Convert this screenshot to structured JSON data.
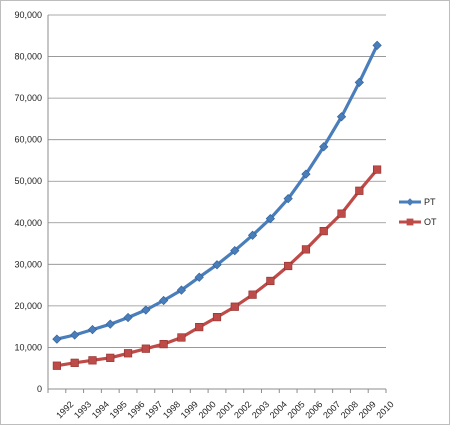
{
  "chart_data": {
    "type": "line",
    "title": "",
    "xlabel": "",
    "ylabel": "",
    "categories": [
      "1992",
      "1993",
      "1994",
      "1995",
      "1996",
      "1997",
      "1998",
      "1999",
      "2000",
      "2001",
      "2002",
      "2003",
      "2004",
      "2005",
      "2006",
      "2007",
      "2008",
      "2009",
      "2010"
    ],
    "ylim": [
      0,
      90000
    ],
    "yticks": [
      0,
      10000,
      20000,
      30000,
      40000,
      50000,
      60000,
      70000,
      80000,
      90000
    ],
    "ytick_labels": [
      "0",
      "10,000",
      "20,000",
      "30,000",
      "40,000",
      "50,000",
      "60,000",
      "70,000",
      "80,000",
      "90,000"
    ],
    "grid": true,
    "legend_position": "right",
    "series": [
      {
        "name": "PT",
        "color": "#4a7ebb",
        "marker": "diamond",
        "values": [
          12000,
          13000,
          14300,
          15600,
          17200,
          19000,
          21300,
          23800,
          26900,
          29900,
          33300,
          37000,
          41000,
          45800,
          51700,
          58300,
          65500,
          73800,
          82700
        ]
      },
      {
        "name": "OT",
        "color": "#be4b48",
        "marker": "square",
        "values": [
          5600,
          6300,
          6900,
          7500,
          8600,
          9700,
          10800,
          12400,
          14900,
          17300,
          19800,
          22700,
          26000,
          29600,
          33600,
          38000,
          42200,
          47700,
          52800
        ]
      }
    ]
  }
}
